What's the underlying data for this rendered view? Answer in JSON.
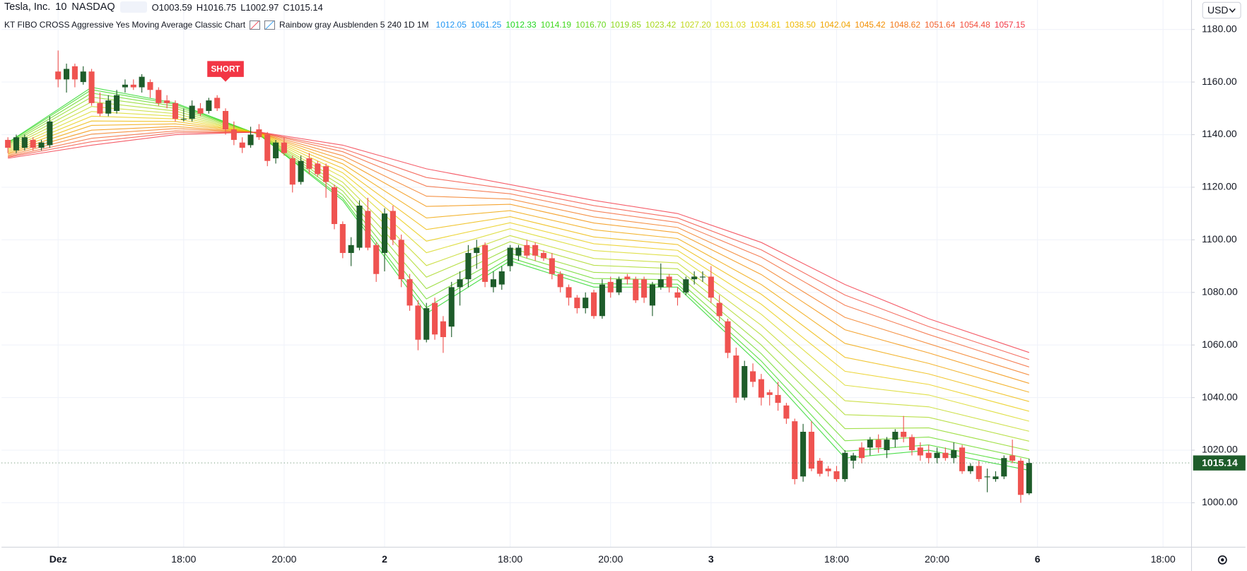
{
  "header": {
    "symbol": "Tesla, Inc.",
    "interval": "10",
    "exchange": "NASDAQ",
    "ohlc": [
      {
        "prefix": "O",
        "value": 1003.59
      },
      {
        "prefix": "H",
        "value": 1016.75
      },
      {
        "prefix": "L",
        "value": 1002.97
      },
      {
        "prefix": "C",
        "value": 1015.14
      }
    ]
  },
  "indicator": {
    "name": "KT FIBO CROSS Aggressive Yes Moving Average Classic Chart",
    "settings": "Rainbow gray Ausblenden 5 240 1D 1M",
    "values": [
      {
        "value": 1012.05,
        "label": "1012.05",
        "color": "#2196f3"
      },
      {
        "value": 1061.25,
        "label": "1061.25",
        "color": "#2196f3"
      },
      {
        "value": 1012.33,
        "label": "1012.33",
        "color": "#1ed61e"
      },
      {
        "value": 1014.19,
        "label": "1014.19",
        "color": "#3fd81e"
      },
      {
        "value": 1016.7,
        "label": "1016.70",
        "color": "#66d81e"
      },
      {
        "value": 1019.85,
        "label": "1019.85",
        "color": "#8cd81e"
      },
      {
        "value": 1023.42,
        "label": "1023.42",
        "color": "#a8d81e"
      },
      {
        "value": 1027.2,
        "label": "1027.20",
        "color": "#c2d81e"
      },
      {
        "value": 1031.03,
        "label": "1031.03",
        "color": "#d8d81e"
      },
      {
        "value": 1034.81,
        "label": "1034.81",
        "color": "#e8cc0c"
      },
      {
        "value": 1038.5,
        "label": "1038.50",
        "color": "#eeb800"
      },
      {
        "value": 1042.04,
        "label": "1042.04",
        "color": "#f0a400"
      },
      {
        "value": 1045.42,
        "label": "1045.42",
        "color": "#f28e00"
      },
      {
        "value": 1048.62,
        "label": "1048.62",
        "color": "#f2781a"
      },
      {
        "value": 1051.64,
        "label": "1051.64",
        "color": "#f26230"
      },
      {
        "value": 1054.48,
        "label": "1054.48",
        "color": "#f24c3c"
      },
      {
        "value": 1057.15,
        "label": "1057.15",
        "color": "#f23645"
      }
    ]
  },
  "chart_data": {
    "type": "candlestick",
    "currency": "USD",
    "grid": true,
    "up_color": "#1e5c2a",
    "down_color": "#ef5350",
    "xlim": [
      -0.76,
      141.4
    ],
    "ylim": [
      983.1,
      1191.2
    ],
    "xticks": [
      {
        "value": 6,
        "label": "Dez"
      },
      {
        "value": 21,
        "label": "18:00"
      },
      {
        "value": 33,
        "label": "20:00"
      },
      {
        "value": 45,
        "label": "2"
      },
      {
        "value": 60,
        "label": "18:00"
      },
      {
        "value": 72,
        "label": "20:00"
      },
      {
        "value": 84,
        "label": "3"
      },
      {
        "value": 99,
        "label": "18:00"
      },
      {
        "value": 111,
        "label": "20:00"
      },
      {
        "value": 123,
        "label": "6"
      },
      {
        "value": 138,
        "label": "18:00"
      }
    ],
    "yticks": [
      {
        "value": 1000,
        "label": "1000.00"
      },
      {
        "value": 1020,
        "label": "1020.00"
      },
      {
        "value": 1040,
        "label": "1040.00"
      },
      {
        "value": 1060,
        "label": "1060.00"
      },
      {
        "value": 1080,
        "label": "1080.00"
      },
      {
        "value": 1100,
        "label": "1100.00"
      },
      {
        "value": 1120,
        "label": "1120.00"
      },
      {
        "value": 1140,
        "label": "1140.00"
      },
      {
        "value": 1160,
        "label": "1160.00"
      },
      {
        "value": 1180,
        "label": "1180.00"
      }
    ],
    "open": [
      1138,
      1134,
      1135,
      1138,
      1135,
      1136,
      1164,
      1161,
      1166,
      1160,
      1164,
      1152,
      1148,
      1149,
      1158,
      1159,
      1158,
      1160,
      1157,
      1153,
      1152,
      1146,
      1146,
      1150,
      1149,
      1154,
      1149,
      1142,
      1137,
      1136,
      1142,
      1140,
      1131,
      1137,
      1131,
      1122,
      1131,
      1129,
      1128,
      1120,
      1106,
      1095,
      1097,
      1111,
      1098,
      1095,
      1111,
      1100,
      1085,
      1075,
      1062,
      1076,
      1069,
      1067,
      1082,
      1085,
      1095,
      1098,
      1082,
      1083,
      1090,
      1094,
      1098,
      1098,
      1095,
      1093,
      1087,
      1082,
      1078,
      1074,
      1080,
      1071,
      1084,
      1080,
      1086,
      1085,
      1085,
      1075,
      1082,
      1086,
      1080,
      1080,
      1085,
      1086,
      1086,
      1076,
      1069,
      1056,
      1040,
      1050,
      1047,
      1042,
      1041,
      1037,
      1031,
      1010,
      1027,
      1016,
      1013,
      1012,
      1009,
      1016,
      1021,
      1021,
      1024,
      1020,
      1024,
      1027,
      1025,
      1021,
      1019,
      1017,
      1019,
      1017,
      1021,
      1012,
      1014,
      1010,
      1009,
      1010,
      1018,
      1016,
      1003.59
    ],
    "high": [
      1139,
      1140,
      1140,
      1139,
      1138,
      1147,
      1172,
      1167,
      1167,
      1166,
      1165,
      1156,
      1155,
      1157,
      1161,
      1161,
      1163,
      1161,
      1158,
      1155,
      1153,
      1150,
      1153,
      1152,
      1154,
      1155,
      1150,
      1145,
      1139,
      1143,
      1144,
      1141,
      1138,
      1139,
      1132,
      1132,
      1133,
      1130,
      1129,
      1121,
      1107,
      1101,
      1115,
      1116,
      1099,
      1112,
      1113,
      1102,
      1087,
      1077,
      1076,
      1078,
      1071,
      1084,
      1088,
      1098,
      1100,
      1099,
      1088,
      1090,
      1098,
      1098,
      1100,
      1099,
      1096,
      1095,
      1088,
      1083,
      1079,
      1080,
      1081,
      1085,
      1086,
      1086,
      1087,
      1086,
      1086,
      1084,
      1091,
      1087,
      1082,
      1086,
      1088,
      1088,
      1090,
      1079,
      1070,
      1059,
      1054,
      1053,
      1049,
      1043,
      1046,
      1038,
      1032,
      1030,
      1031,
      1017,
      1014,
      1014,
      1020,
      1019,
      1023,
      1025,
      1026,
      1025,
      1028,
      1033,
      1026,
      1023,
      1022,
      1021,
      1021,
      1023,
      1022,
      1015,
      1016,
      1013,
      1012,
      1018,
      1024,
      1017,
      1016.75
    ],
    "low": [
      1133,
      1133,
      1134,
      1134,
      1134,
      1135,
      1158,
      1156,
      1158,
      1159,
      1151,
      1147,
      1147,
      1148,
      1156,
      1157,
      1156,
      1154,
      1151,
      1150,
      1145,
      1145,
      1145,
      1147,
      1148,
      1149,
      1140,
      1136,
      1133,
      1135,
      1138,
      1128,
      1129,
      1132,
      1118,
      1121,
      1125,
      1124,
      1116,
      1104,
      1093,
      1090,
      1096,
      1096,
      1084,
      1088,
      1098,
      1082,
      1073,
      1058,
      1061,
      1062,
      1057,
      1063,
      1075,
      1082,
      1089,
      1082,
      1080,
      1081,
      1088,
      1092,
      1093,
      1092,
      1092,
      1085,
      1080,
      1075,
      1072,
      1072,
      1070,
      1070,
      1078,
      1079,
      1083,
      1076,
      1076,
      1071,
      1081,
      1080,
      1075,
      1079,
      1083,
      1084,
      1076,
      1069,
      1055,
      1038,
      1039,
      1044,
      1037,
      1037,
      1035,
      1030,
      1007,
      1008,
      1012,
      1010,
      1010,
      1008,
      1008,
      1013,
      1015,
      1018,
      1019,
      1017,
      1021,
      1023,
      1018,
      1016,
      1015,
      1015,
      1016,
      1015,
      1011,
      1011,
      1008,
      1004,
      1008,
      1009,
      1015,
      1000,
      1002.97
    ],
    "close": [
      1135,
      1139,
      1139,
      1135,
      1137,
      1145,
      1161,
      1165,
      1161,
      1164,
      1152,
      1148,
      1153,
      1155,
      1159,
      1158,
      1162,
      1157,
      1152,
      1152,
      1146,
      1146,
      1151,
      1148,
      1153,
      1150,
      1142,
      1138,
      1135,
      1140,
      1139,
      1130,
      1137,
      1133,
      1121,
      1130,
      1127,
      1125,
      1122,
      1106,
      1095,
      1098,
      1113,
      1097,
      1087,
      1110,
      1100,
      1085,
      1075,
      1062,
      1074,
      1064,
      1063,
      1082,
      1085,
      1095,
      1097,
      1084,
      1085,
      1088,
      1097,
      1097,
      1094,
      1094,
      1093,
      1087,
      1082,
      1078,
      1074,
      1078,
      1071,
      1083,
      1080,
      1085,
      1085,
      1077,
      1078,
      1083,
      1085,
      1082,
      1078,
      1085,
      1086,
      1086,
      1078,
      1071,
      1057,
      1040,
      1052,
      1046,
      1040,
      1041,
      1038,
      1032,
      1009,
      1027,
      1013,
      1011,
      1012,
      1009,
      1019,
      1018,
      1017,
      1024,
      1021,
      1024,
      1027,
      1025,
      1020,
      1018,
      1017,
      1019,
      1017,
      1020,
      1012,
      1014,
      1009,
      1010,
      1010,
      1017,
      1016,
      1003,
      1015.14
    ],
    "series": [
      {
        "color": "#1ed61e",
        "x": [
          0,
          10,
          20,
          30,
          40,
          50,
          60,
          70,
          80,
          90,
          100,
          110,
          122
        ],
        "values": [
          1137,
          1158,
          1152,
          1140,
          1115,
          1072,
          1092,
          1082,
          1082,
          1052,
          1017,
          1020,
          1012.33
        ]
      },
      {
        "color": "#3fd81e",
        "x": [
          0,
          10,
          20,
          30,
          40,
          50,
          60,
          70,
          80,
          90,
          100,
          110,
          122
        ],
        "values": [
          1136.8,
          1157.1,
          1151.5,
          1140,
          1115.8,
          1074.2,
          1093.2,
          1083.3,
          1083.1,
          1053.9,
          1019.6,
          1022,
          1014.19
        ]
      },
      {
        "color": "#66d81e",
        "x": [
          0,
          10,
          20,
          30,
          40,
          50,
          60,
          70,
          80,
          90,
          100,
          110,
          122
        ],
        "values": [
          1136.4,
          1155.8,
          1150.8,
          1140.1,
          1117.1,
          1077.5,
          1094.9,
          1085.3,
          1084.8,
          1056.7,
          1023.6,
          1025,
          1016.7
        ]
      },
      {
        "color": "#8cd81e",
        "x": [
          0,
          10,
          20,
          30,
          40,
          50,
          60,
          70,
          80,
          90,
          100,
          110,
          122
        ],
        "values": [
          1136,
          1154.3,
          1150,
          1140.2,
          1118.6,
          1081.4,
          1096.9,
          1087.6,
          1086.8,
          1060,
          1028.2,
          1028.5,
          1019.85
        ]
      },
      {
        "color": "#a8d81e",
        "x": [
          0,
          10,
          20,
          30,
          40,
          50,
          60,
          70,
          80,
          90,
          100,
          110,
          122
        ],
        "values": [
          1135.5,
          1152.5,
          1149,
          1140.3,
          1120.3,
          1085.8,
          1099.3,
          1090.3,
          1089,
          1063.8,
          1033.5,
          1032.5,
          1023.42
        ]
      },
      {
        "color": "#c2d81e",
        "x": [
          0,
          10,
          20,
          30,
          40,
          50,
          60,
          70,
          80,
          90,
          100,
          110,
          122
        ],
        "values": [
          1135,
          1150.7,
          1148,
          1140.3,
          1121.9,
          1090.2,
          1101.6,
          1092.9,
          1091.2,
          1067.5,
          1038.8,
          1036.5,
          1027.2
        ]
      },
      {
        "color": "#d8d81e",
        "x": [
          0,
          10,
          20,
          30,
          40,
          50,
          60,
          70,
          80,
          90,
          100,
          110,
          122
        ],
        "values": [
          1134.5,
          1148.8,
          1147,
          1140.4,
          1123.8,
          1095.1,
          1104.2,
          1095.9,
          1093.8,
          1071.7,
          1044.7,
          1041,
          1031.03
        ]
      },
      {
        "color": "#e8cc0c",
        "x": [
          0,
          10,
          20,
          30,
          40,
          50,
          60,
          70,
          80,
          90,
          100,
          110,
          122
        ],
        "values": [
          1134,
          1147,
          1146,
          1140.5,
          1125.5,
          1099.5,
          1106.5,
          1098.5,
          1096,
          1075.5,
          1050,
          1045,
          1034.81
        ]
      },
      {
        "color": "#eeb800",
        "x": [
          0,
          10,
          20,
          30,
          40,
          50,
          60,
          70,
          80,
          90,
          100,
          110,
          122
        ],
        "values": [
          1133.5,
          1145.2,
          1145,
          1140.6,
          1127.2,
          1103.9,
          1108.8,
          1101.1,
          1098.2,
          1079.3,
          1055.3,
          1049,
          1038.5
        ]
      },
      {
        "color": "#f0a400",
        "x": [
          0,
          10,
          20,
          30,
          40,
          50,
          60,
          70,
          80,
          90,
          100,
          110,
          122
        ],
        "values": [
          1133,
          1143.5,
          1144.1,
          1140.7,
          1128.9,
          1108.3,
          1111.1,
          1103.8,
          1100.5,
          1083,
          1060.6,
          1053,
          1042.04
        ]
      },
      {
        "color": "#f28e00",
        "x": [
          0,
          10,
          20,
          30,
          40,
          50,
          60,
          70,
          80,
          90,
          100,
          110,
          122
        ],
        "values": [
          1132.6,
          1141.7,
          1143.1,
          1140.7,
          1130.5,
          1112.7,
          1113.5,
          1106.4,
          1102.7,
          1086.8,
          1065.8,
          1057,
          1045.42
        ]
      },
      {
        "color": "#f2781a",
        "x": [
          0,
          10,
          20,
          30,
          40,
          50,
          60,
          70,
          80,
          90,
          100,
          110,
          122
        ],
        "values": [
          1132.1,
          1140.2,
          1142.3,
          1140.8,
          1132,
          1116.6,
          1115.5,
          1108.7,
          1104.7,
          1090.1,
          1070.5,
          1060.5,
          1048.62
        ]
      },
      {
        "color": "#f26230",
        "x": [
          0,
          10,
          20,
          30,
          40,
          50,
          60,
          70,
          80,
          90,
          100,
          110,
          122
        ],
        "values": [
          1131.7,
          1138.6,
          1141.4,
          1140.9,
          1133.5,
          1120.4,
          1117.5,
          1111,
          1106.6,
          1093.4,
          1075.1,
          1064,
          1051.64
        ]
      },
      {
        "color": "#f24c3c",
        "x": [
          0,
          10,
          20,
          30,
          40,
          50,
          60,
          70,
          80,
          90,
          100,
          110,
          122
        ],
        "values": [
          1131.4,
          1137.3,
          1140.7,
          1140.9,
          1134.7,
          1123.7,
          1119.3,
          1113,
          1108.3,
          1096.2,
          1079,
          1067,
          1054.48
        ]
      },
      {
        "color": "#f23645",
        "x": [
          0,
          10,
          20,
          30,
          40,
          50,
          60,
          70,
          80,
          90,
          100,
          110,
          122
        ],
        "values": [
          1131,
          1136,
          1140,
          1141,
          1136,
          1127,
          1121,
          1115,
          1110,
          1099,
          1083,
          1070,
          1057.15
        ]
      }
    ],
    "signals": [
      {
        "label": "SHORT",
        "x": 26,
        "color": "#f23645"
      }
    ]
  }
}
